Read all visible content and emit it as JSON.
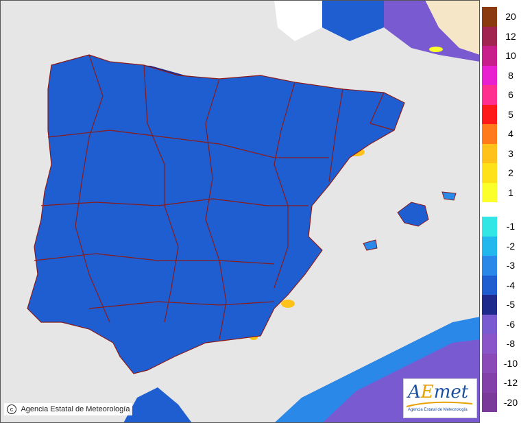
{
  "legend": {
    "warm_classes": [
      {
        "label": "20",
        "color": "#8b3a0f"
      },
      {
        "label": "12",
        "color": "#a1234f"
      },
      {
        "label": "10",
        "color": "#c81e8c"
      },
      {
        "label": "8",
        "color": "#e820d0"
      },
      {
        "label": "6",
        "color": "#ff2f8f"
      },
      {
        "label": "5",
        "color": "#ff1a1a"
      },
      {
        "label": "4",
        "color": "#ff7a1a"
      },
      {
        "label": "3",
        "color": "#ffc21a"
      },
      {
        "label": "2",
        "color": "#ffe11a"
      },
      {
        "label": "1",
        "color": "#fbff2a"
      }
    ],
    "cold_classes": [
      {
        "label": "-1",
        "color": "#33e6e6"
      },
      {
        "label": "-2",
        "color": "#22b8ee"
      },
      {
        "label": "-3",
        "color": "#2a88e8"
      },
      {
        "label": "-4",
        "color": "#1f5ed0"
      },
      {
        "label": "-5",
        "color": "#1e2a8c"
      },
      {
        "label": "-6",
        "color": "#7a5ad0"
      },
      {
        "label": "-8",
        "color": "#8a55c8"
      },
      {
        "label": "-10",
        "color": "#8a4ab8"
      },
      {
        "label": "-12",
        "color": "#8240a8"
      },
      {
        "label": "-20",
        "color": "#7a3a9a"
      }
    ]
  },
  "credit": {
    "text": "Agencia Estatal de Meteorología",
    "symbol": "c"
  },
  "logo": {
    "wordmark_a": "A",
    "wordmark_e": "E",
    "wordmark_rest": "met",
    "subtitle": "Agencia Estatal de Meteorología"
  },
  "colors": {
    "sea": "#e6e6e6",
    "land_outside": "#f5e6c8",
    "zero": "#ffffff",
    "border": "#8a1a1a"
  }
}
